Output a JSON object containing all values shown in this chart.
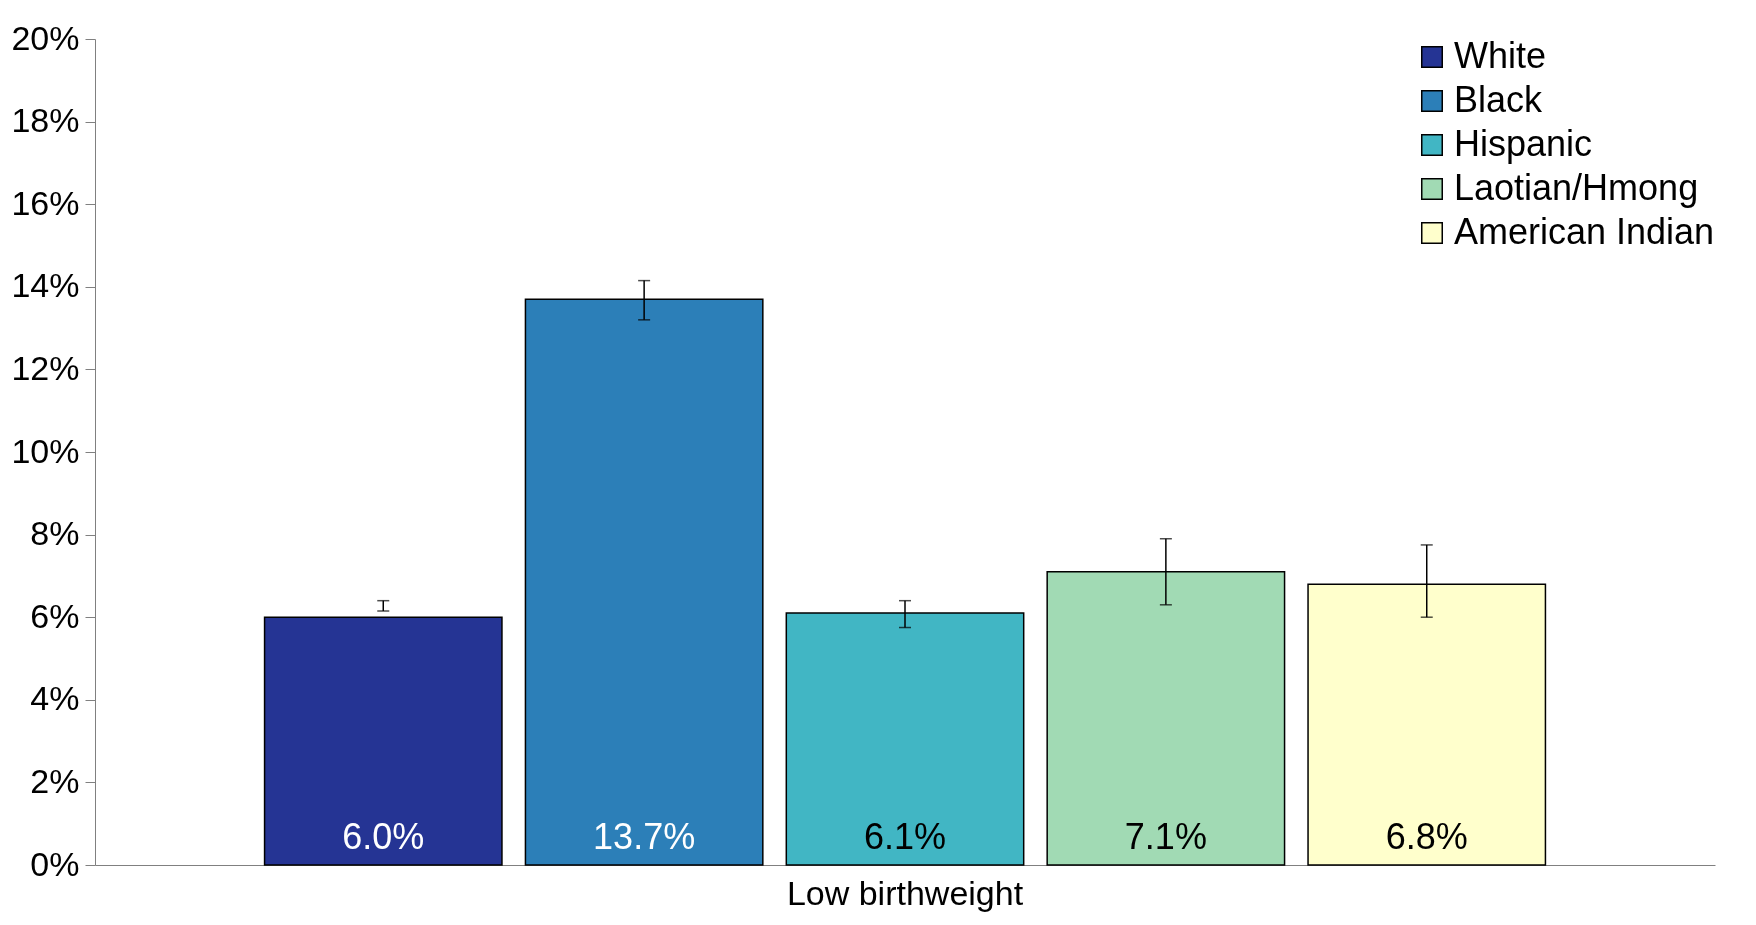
{
  "chart_data": {
    "type": "bar",
    "categories": [
      "Low birthweight"
    ],
    "series": [
      {
        "name": "White",
        "color": "#253494",
        "values": [
          6.0
        ],
        "errors": [
          [
            6.15,
            6.4
          ]
        ],
        "value_labels": [
          "6.0%"
        ]
      },
      {
        "name": "Black",
        "color": "#2c7fb8",
        "values": [
          13.7
        ],
        "errors": [
          [
            13.2,
            14.15
          ]
        ],
        "value_labels": [
          "13.7%"
        ]
      },
      {
        "name": "Hispanic",
        "color": "#41b6c4",
        "values": [
          6.1
        ],
        "errors": [
          [
            5.75,
            6.4
          ]
        ],
        "value_labels": [
          "6.1%"
        ]
      },
      {
        "name": "Laotian/Hmong",
        "color": "#a1dab4",
        "values": [
          7.1
        ],
        "errors": [
          [
            6.3,
            7.9
          ]
        ],
        "value_labels": [
          "7.1%"
        ]
      },
      {
        "name": "American Indian",
        "color": "#ffffcc",
        "values": [
          6.8
        ],
        "errors": [
          [
            6.0,
            7.75
          ]
        ],
        "value_labels": [
          "6.8%"
        ]
      }
    ],
    "ylim": [
      0,
      20
    ],
    "yticks": [
      {
        "value": 0,
        "label": "0%"
      },
      {
        "value": 2,
        "label": "2%"
      },
      {
        "value": 4,
        "label": "4%"
      },
      {
        "value": 6,
        "label": "6%"
      },
      {
        "value": 8,
        "label": "8%"
      },
      {
        "value": 10,
        "label": "10%"
      },
      {
        "value": 12,
        "label": "12%"
      },
      {
        "value": 14,
        "label": "14%"
      },
      {
        "value": 16,
        "label": "16%"
      },
      {
        "value": 18,
        "label": "18%"
      },
      {
        "value": 20,
        "label": "20%"
      }
    ],
    "grid": false,
    "legend": "top right"
  }
}
